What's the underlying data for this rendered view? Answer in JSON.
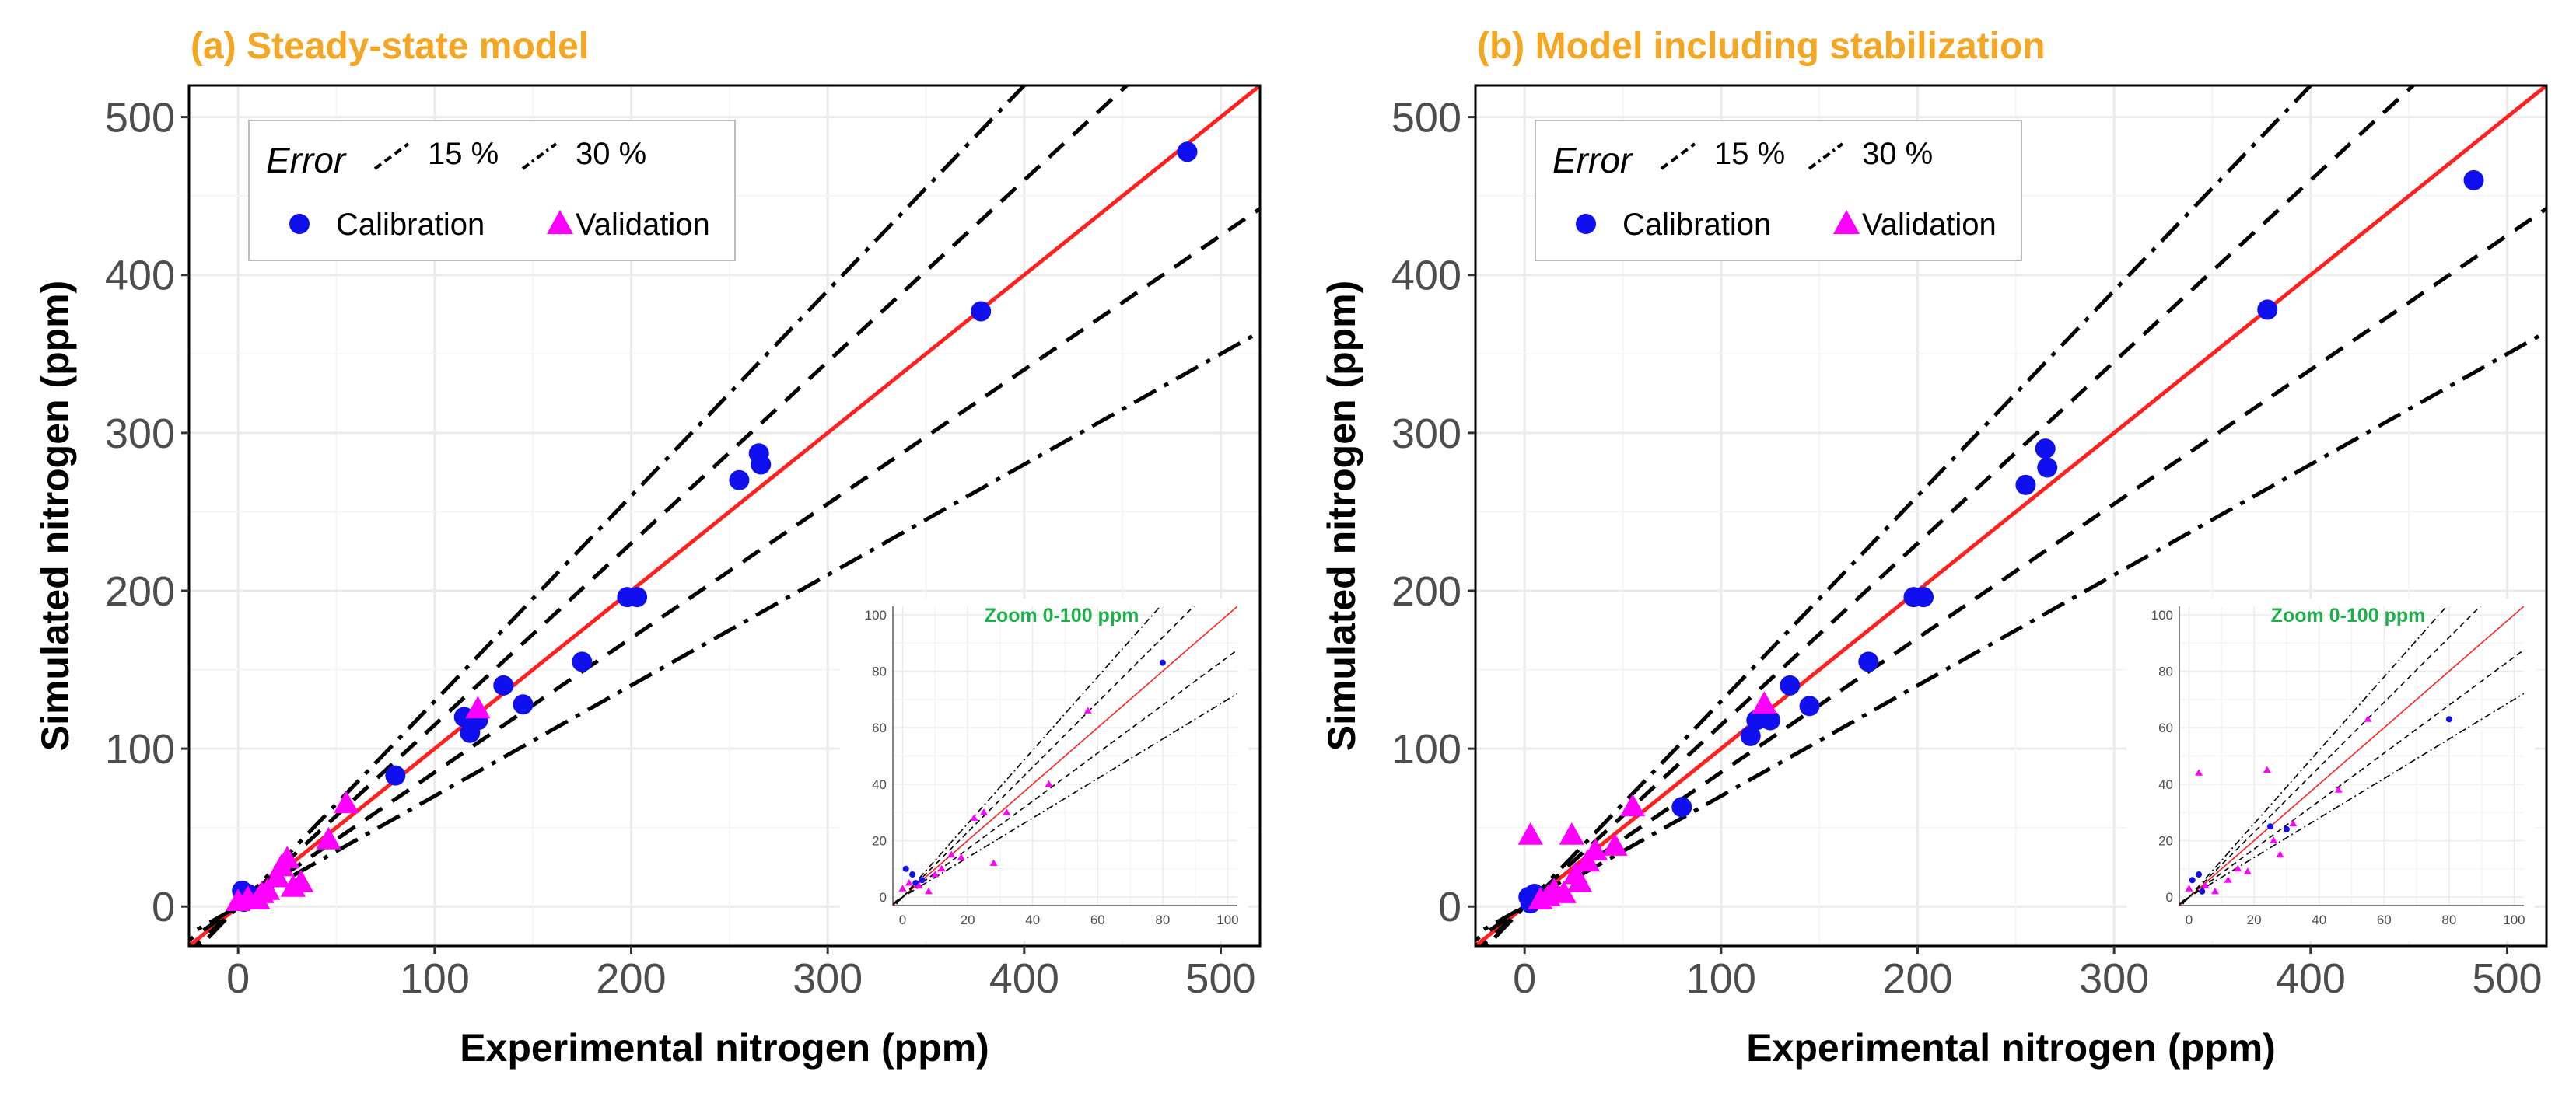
{
  "chart_data": [
    {
      "type": "scatter",
      "title": "(a) Steady-state model",
      "xlabel": "Experimental nitrogen (ppm)",
      "ylabel": "Simulated nitrogen (ppm)",
      "xlim": [
        -25,
        520
      ],
      "ylim": [
        -25,
        520
      ],
      "xticks": [
        0,
        100,
        200,
        300,
        400,
        500
      ],
      "yticks": [
        0,
        100,
        200,
        300,
        400,
        500
      ],
      "legend": {
        "error_title": "Error",
        "error_items": [
          "15 %",
          "30 %"
        ],
        "series_items": [
          "Calibration",
          "Validation"
        ]
      },
      "reference_lines": [
        {
          "name": "1:1",
          "slope": 1.0,
          "style": "solid",
          "color": "#ff2020"
        },
        {
          "name": "+15 %",
          "slope": 1.15,
          "style": "dashed"
        },
        {
          "name": "-15 %",
          "slope": 0.85,
          "style": "dashed"
        },
        {
          "name": "+30 %",
          "slope": 1.3,
          "style": "dashdot"
        },
        {
          "name": "-30 %",
          "slope": 0.7,
          "style": "dashdot"
        }
      ],
      "series": [
        {
          "name": "Calibration",
          "marker": "circle",
          "color": "#1010ee",
          "points": [
            [
              2,
              10
            ],
            [
              5,
              8
            ],
            [
              3,
              3
            ],
            [
              80,
              83
            ],
            [
              115,
              120
            ],
            [
              118,
              110
            ],
            [
              122,
              118
            ],
            [
              135,
              140
            ],
            [
              145,
              128
            ],
            [
              175,
              155
            ],
            [
              198,
              196
            ],
            [
              203,
              196
            ],
            [
              255,
              270
            ],
            [
              265,
              287
            ],
            [
              266,
              280
            ],
            [
              378,
              377
            ],
            [
              483,
              478
            ]
          ]
        },
        {
          "name": "Validation",
          "marker": "triangle",
          "color": "#ff00ff",
          "points": [
            [
              0,
              3
            ],
            [
              5,
              5
            ],
            [
              10,
              4
            ],
            [
              12,
              8
            ],
            [
              15,
              10
            ],
            [
              20,
              18
            ],
            [
              22,
              25
            ],
            [
              25,
              30
            ],
            [
              28,
              12
            ],
            [
              32,
              15
            ],
            [
              46,
              42
            ],
            [
              55,
              65
            ],
            [
              122,
              125
            ]
          ]
        }
      ],
      "inset": {
        "title": "Zoom 0-100 ppm",
        "xlim": [
          -3,
          103
        ],
        "ylim": [
          -3,
          103
        ],
        "xticks": [
          0,
          20,
          40,
          60,
          80,
          100
        ],
        "yticks": [
          0,
          20,
          40,
          60,
          80,
          100
        ],
        "calibration_points": [
          [
            1,
            10
          ],
          [
            3,
            8
          ],
          [
            4,
            5
          ],
          [
            6,
            6
          ],
          [
            80,
            83
          ]
        ],
        "validation_points": [
          [
            0,
            3
          ],
          [
            2,
            5
          ],
          [
            5,
            4
          ],
          [
            8,
            2
          ],
          [
            10,
            8
          ],
          [
            12,
            10
          ],
          [
            15,
            15
          ],
          [
            18,
            14
          ],
          [
            22,
            28
          ],
          [
            25,
            30
          ],
          [
            28,
            12
          ],
          [
            32,
            30
          ],
          [
            45,
            40
          ],
          [
            57,
            66
          ]
        ]
      }
    },
    {
      "type": "scatter",
      "title": "(b) Model including stabilization",
      "xlabel": "Experimental nitrogen (ppm)",
      "ylabel": "Simulated nitrogen (ppm)",
      "xlim": [
        -25,
        520
      ],
      "ylim": [
        -25,
        520
      ],
      "xticks": [
        0,
        100,
        200,
        300,
        400,
        500
      ],
      "yticks": [
        0,
        100,
        200,
        300,
        400,
        500
      ],
      "legend": {
        "error_title": "Error",
        "error_items": [
          "15 %",
          "30 %"
        ],
        "series_items": [
          "Calibration",
          "Validation"
        ]
      },
      "reference_lines": [
        {
          "name": "1:1",
          "slope": 1.0,
          "style": "solid",
          "color": "#ff2020"
        },
        {
          "name": "+15 %",
          "slope": 1.15,
          "style": "dashed"
        },
        {
          "name": "-15 %",
          "slope": 0.85,
          "style": "dashed"
        },
        {
          "name": "+30 %",
          "slope": 1.3,
          "style": "dashdot"
        },
        {
          "name": "-30 %",
          "slope": 0.7,
          "style": "dashdot"
        }
      ],
      "series": [
        {
          "name": "Calibration",
          "marker": "circle",
          "color": "#1010ee",
          "points": [
            [
              2,
              6
            ],
            [
              5,
              8
            ],
            [
              3,
              2
            ],
            [
              80,
              63
            ],
            [
              115,
              108
            ],
            [
              118,
              118
            ],
            [
              125,
              118
            ],
            [
              135,
              140
            ],
            [
              145,
              127
            ],
            [
              175,
              155
            ],
            [
              198,
              196
            ],
            [
              203,
              196
            ],
            [
              255,
              267
            ],
            [
              265,
              290
            ],
            [
              266,
              278
            ],
            [
              378,
              378
            ],
            [
              483,
              460
            ]
          ]
        },
        {
          "name": "Validation",
          "marker": "triangle",
          "color": "#ff00ff",
          "points": [
            [
              3,
              45
            ],
            [
              8,
              4
            ],
            [
              12,
              6
            ],
            [
              15,
              10
            ],
            [
              20,
              8
            ],
            [
              24,
              45
            ],
            [
              26,
              20
            ],
            [
              28,
              15
            ],
            [
              32,
              28
            ],
            [
              36,
              35
            ],
            [
              46,
              38
            ],
            [
              55,
              63
            ],
            [
              122,
              128
            ]
          ]
        }
      ],
      "inset": {
        "title": "Zoom 0-100 ppm",
        "xlim": [
          -3,
          103
        ],
        "ylim": [
          -3,
          103
        ],
        "xticks": [
          0,
          20,
          40,
          60,
          80,
          100
        ],
        "yticks": [
          0,
          20,
          40,
          60,
          80,
          100
        ],
        "calibration_points": [
          [
            1,
            6
          ],
          [
            3,
            8
          ],
          [
            4,
            2
          ],
          [
            25,
            25
          ],
          [
            30,
            24
          ],
          [
            80,
            63
          ]
        ],
        "validation_points": [
          [
            0,
            3
          ],
          [
            3,
            44
          ],
          [
            5,
            4
          ],
          [
            8,
            2
          ],
          [
            12,
            6
          ],
          [
            15,
            10
          ],
          [
            18,
            9
          ],
          [
            24,
            45
          ],
          [
            26,
            20
          ],
          [
            28,
            15
          ],
          [
            32,
            26
          ],
          [
            46,
            38
          ],
          [
            55,
            63
          ]
        ]
      }
    }
  ]
}
